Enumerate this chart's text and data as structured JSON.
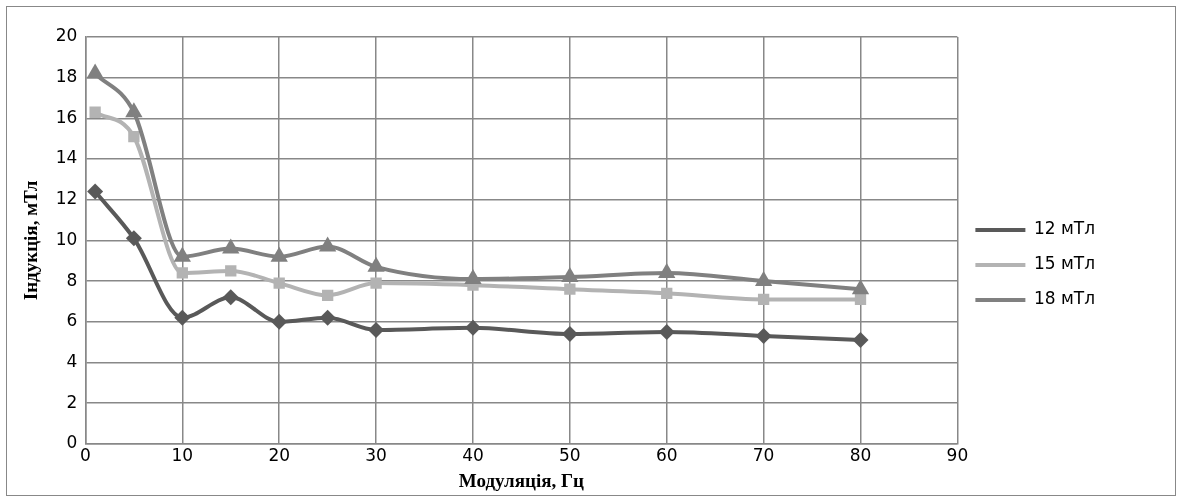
{
  "chart_data": {
    "type": "line",
    "xlabel": "Модуляція, Гц",
    "ylabel": "Індукція, мТл",
    "x": [
      1,
      5,
      10,
      15,
      20,
      25,
      30,
      40,
      50,
      60,
      70,
      80
    ],
    "series": [
      {
        "name": "12 мТл",
        "color": "#595959",
        "marker": "diamond",
        "values": [
          12.4,
          10.1,
          6.2,
          7.2,
          6.0,
          6.2,
          5.6,
          5.7,
          5.4,
          5.5,
          5.3,
          5.1
        ]
      },
      {
        "name": "15 мТл",
        "color": "#b3b3b3",
        "marker": "square",
        "values": [
          16.3,
          15.1,
          8.4,
          8.5,
          7.9,
          7.3,
          7.9,
          7.8,
          7.6,
          7.4,
          7.1,
          7.1
        ]
      },
      {
        "name": "18 мТл",
        "color": "#808080",
        "marker": "triangle",
        "values": [
          18.2,
          16.3,
          9.2,
          9.6,
          9.2,
          9.7,
          8.7,
          8.1,
          8.2,
          8.4,
          8.0,
          7.6
        ]
      }
    ],
    "xlim": [
      0,
      90
    ],
    "xticks": [
      0,
      10,
      20,
      30,
      40,
      50,
      60,
      70,
      80,
      90
    ],
    "ylim": [
      0,
      20
    ],
    "yticks": [
      0,
      2,
      4,
      6,
      8,
      10,
      12,
      14,
      16,
      18,
      20
    ],
    "grid": true,
    "legend": "right",
    "line_style": "solid"
  }
}
